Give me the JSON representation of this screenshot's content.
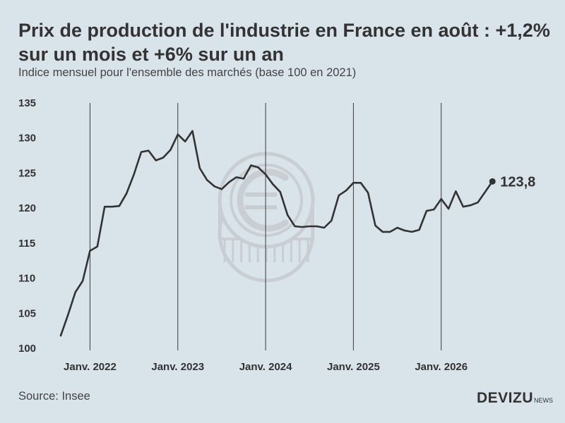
{
  "header": {
    "title": "Prix de production de l'industrie en France en août : +1,2% sur un mois et +6% sur un an",
    "subtitle": "Indice mensuel pour l'ensemble des marchés (base 100 en 2021)"
  },
  "footer": {
    "source": "Source: Insee",
    "brand_main": "DEVIZU",
    "brand_sub": "NEWS"
  },
  "colors": {
    "background": "#d9e3ea",
    "line": "#333333",
    "watermark": "#c9ced2"
  },
  "watermark": {
    "icon": "euro-coin-icon"
  },
  "chart_data": {
    "type": "line",
    "title": "Prix de production de l'industrie en France en août : +1,2% sur un mois et +6% sur un an",
    "subtitle": "Indice mensuel pour l'ensemble des marchés (base 100 en 2021)",
    "xlabel": "",
    "ylabel": "",
    "ylim": [
      100,
      135
    ],
    "yticks": [
      100,
      105,
      110,
      115,
      120,
      125,
      130,
      135
    ],
    "xlim": [
      0,
      56
    ],
    "x_ticks": [
      {
        "x": 4,
        "label": "Janv. 2022"
      },
      {
        "x": 16,
        "label": "Janv. 2023"
      },
      {
        "x": 28,
        "label": "Janv. 2024"
      },
      {
        "x": 40,
        "label": "Janv. 2025"
      },
      {
        "x": 52,
        "label": "Janv. 2026"
      }
    ],
    "grid": "vertical lines at each January",
    "series": [
      {
        "values": [
          101.8,
          104.8,
          108.0,
          109.6,
          113.9,
          114.5,
          120.2,
          120.2,
          120.3,
          122.1,
          124.8,
          128.0,
          128.2,
          126.8,
          127.2,
          128.3,
          130.5,
          129.5,
          131.0,
          125.7,
          124.0,
          123.1,
          122.7,
          123.7,
          124.4,
          124.2,
          126.1,
          125.8,
          124.8,
          123.4,
          122.3,
          119.0,
          117.4,
          117.3,
          117.4,
          117.4,
          117.2,
          118.2,
          121.8,
          122.5,
          123.6,
          123.6,
          122.2,
          117.5,
          116.6,
          116.6,
          117.2,
          116.8,
          116.6,
          116.9,
          119.6,
          119.8,
          121.3,
          119.9,
          122.4,
          120.2,
          120.4,
          120.8,
          122.3,
          123.8
        ]
      }
    ],
    "end_label": "123,8",
    "legend": "none"
  }
}
